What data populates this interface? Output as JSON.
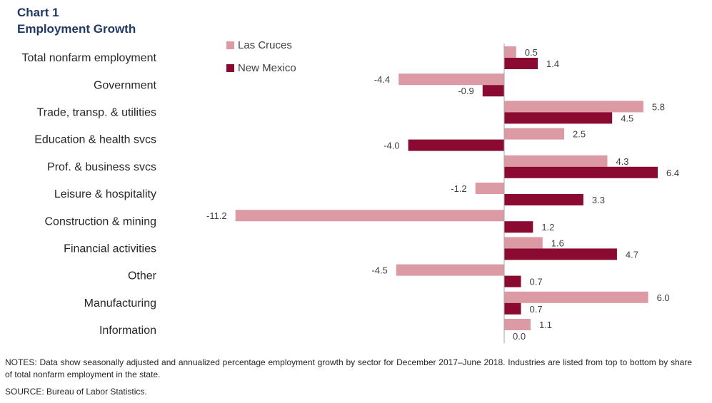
{
  "title_line1": "Chart 1",
  "title_line2": "Employment Growth",
  "notes": "NOTES: Data show seasonally adjusted and annualized percentage employment growth by sector for December 2017–June 2018. Industries are listed from top to bottom by share of total nonfarm employment in the state.",
  "source": "SOURCE: Bureau of Labor Statistics.",
  "chart_data": {
    "type": "bar",
    "orientation": "horizontal",
    "categories": [
      "Total nonfarm employment",
      "Government",
      "Trade, transp. & utilities",
      "Education & health svcs",
      "Prof. & business svcs",
      "Leisure & hospitality",
      "Construction & mining",
      "Financial activities",
      "Other",
      "Manufacturing",
      "Information"
    ],
    "series": [
      {
        "name": "Las Cruces",
        "color": "#dc9aa4",
        "values": [
          0.5,
          -4.4,
          5.8,
          2.5,
          4.3,
          -1.2,
          -11.2,
          1.6,
          -4.5,
          6.0,
          1.1
        ]
      },
      {
        "name": "New Mexico",
        "color": "#8b0a32",
        "values": [
          1.4,
          -0.9,
          4.5,
          -4.0,
          6.4,
          3.3,
          1.2,
          4.7,
          0.7,
          0.7,
          0.0
        ]
      }
    ],
    "legend_position": "top-left of plot",
    "grid": false
  }
}
